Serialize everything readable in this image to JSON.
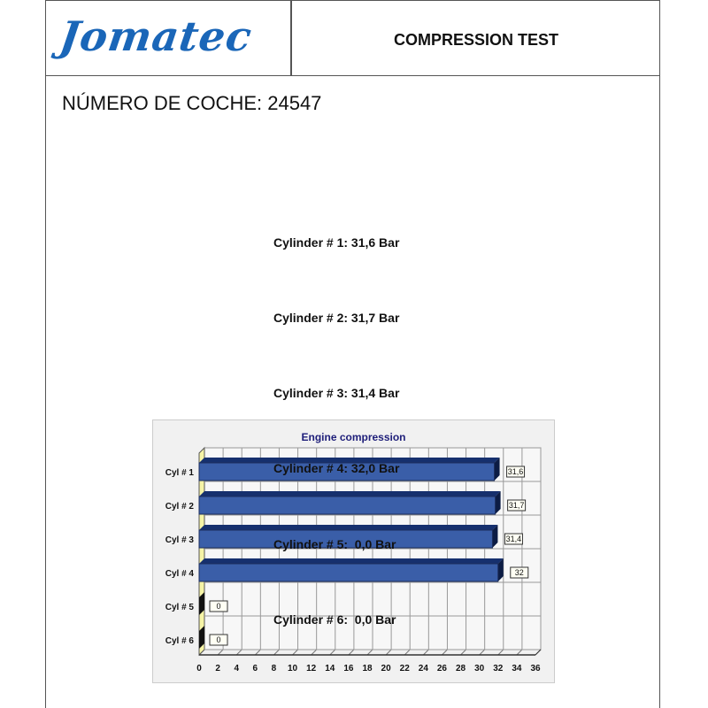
{
  "header": {
    "logo_text": "Jomatec",
    "title": "COMPRESSION TEST"
  },
  "car_number_label": "NÚMERO DE COCHE: 24547",
  "cylinders": [
    "Cylinder # 1: 31,6 Bar",
    "Cylinder # 2: 31,7 Bar",
    "Cylinder # 3: 31,4 Bar",
    "Cylinder # 4: 32,0 Bar",
    "Cylinder # 5:  0,0 Bar",
    "Cylinder # 6:  0,0 Bar"
  ],
  "colors": {
    "bar": "#3a5ea8",
    "bar_top": "#16306e",
    "logo": "#1a66b8",
    "title": "#1f1f7a"
  },
  "chart_data": {
    "type": "bar",
    "orientation": "horizontal",
    "title": "Engine compression",
    "categories": [
      "Cyl # 1",
      "Cyl # 2",
      "Cyl # 3",
      "Cyl # 4",
      "Cyl # 5",
      "Cyl # 6"
    ],
    "values": [
      31.6,
      31.7,
      31.4,
      32,
      0,
      0
    ],
    "data_labels": [
      "31,6",
      "31,7",
      "31,4",
      "32",
      "0",
      "0"
    ],
    "xlim": [
      0,
      36
    ],
    "xticks": [
      0,
      2,
      4,
      6,
      8,
      10,
      12,
      14,
      16,
      18,
      20,
      22,
      24,
      26,
      28,
      30,
      32,
      34,
      36
    ],
    "grid": true,
    "style": "3d"
  }
}
